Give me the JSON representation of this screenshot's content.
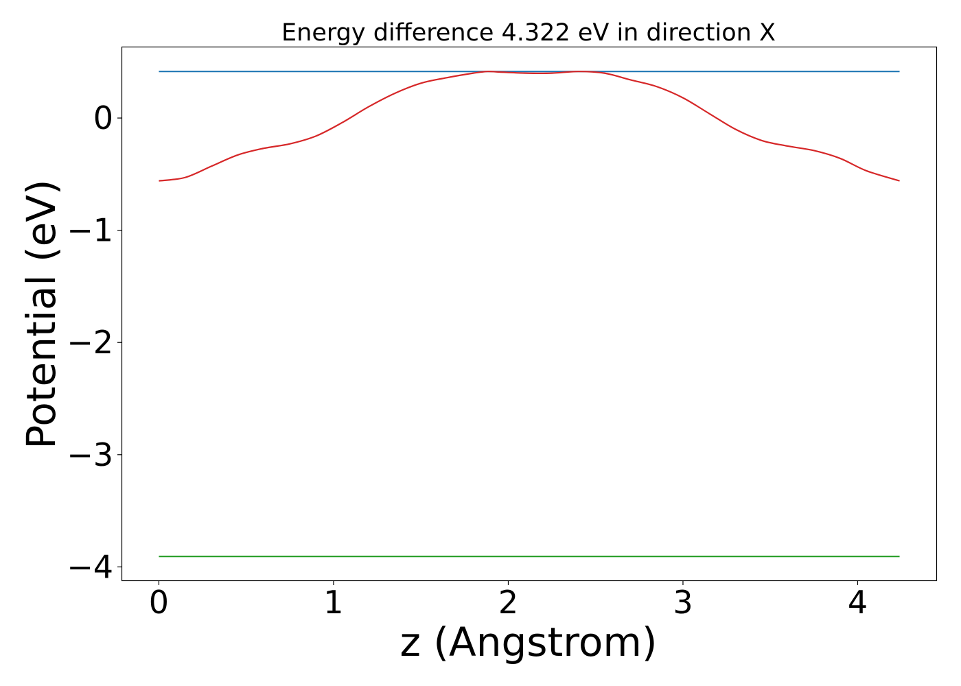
{
  "chart_data": {
    "type": "line",
    "title": "Energy difference 4.322 eV in direction X",
    "xlabel": "z (Angstrom)",
    "ylabel": "Potential (eV)",
    "xlim": [
      -0.21,
      4.45
    ],
    "ylim": [
      -4.12,
      0.63
    ],
    "xticks": [
      0,
      1,
      2,
      3,
      4
    ],
    "xtick_labels": [
      "0",
      "1",
      "2",
      "3",
      "4"
    ],
    "yticks": [
      -4,
      -3,
      -2,
      -1,
      0
    ],
    "ytick_labels": [
      "−4",
      "−3",
      "−2",
      "−1",
      "0"
    ],
    "grid": false,
    "series": [
      {
        "color": "#1f77b4",
        "x": [
          0,
          4.24
        ],
        "y": [
          0.415,
          0.415
        ]
      },
      {
        "color": "#2ca02c",
        "x": [
          0,
          4.24
        ],
        "y": [
          -3.907,
          -3.907
        ]
      },
      {
        "color": "#d62728",
        "x": [
          0,
          0.15,
          0.3,
          0.45,
          0.6,
          0.75,
          0.9,
          1.05,
          1.2,
          1.35,
          1.5,
          1.65,
          1.8,
          1.88,
          1.95,
          2.1,
          2.25,
          2.4,
          2.55,
          2.7,
          2.85,
          3.0,
          3.15,
          3.3,
          3.45,
          3.6,
          3.75,
          3.9,
          4.05,
          4.24
        ],
        "y": [
          -0.56,
          -0.53,
          -0.43,
          -0.33,
          -0.27,
          -0.23,
          -0.16,
          -0.04,
          0.1,
          0.22,
          0.31,
          0.36,
          0.4,
          0.415,
          0.41,
          0.4,
          0.4,
          0.415,
          0.4,
          0.34,
          0.28,
          0.18,
          0.04,
          -0.1,
          -0.2,
          -0.25,
          -0.29,
          -0.36,
          -0.47,
          -0.56
        ]
      }
    ]
  }
}
